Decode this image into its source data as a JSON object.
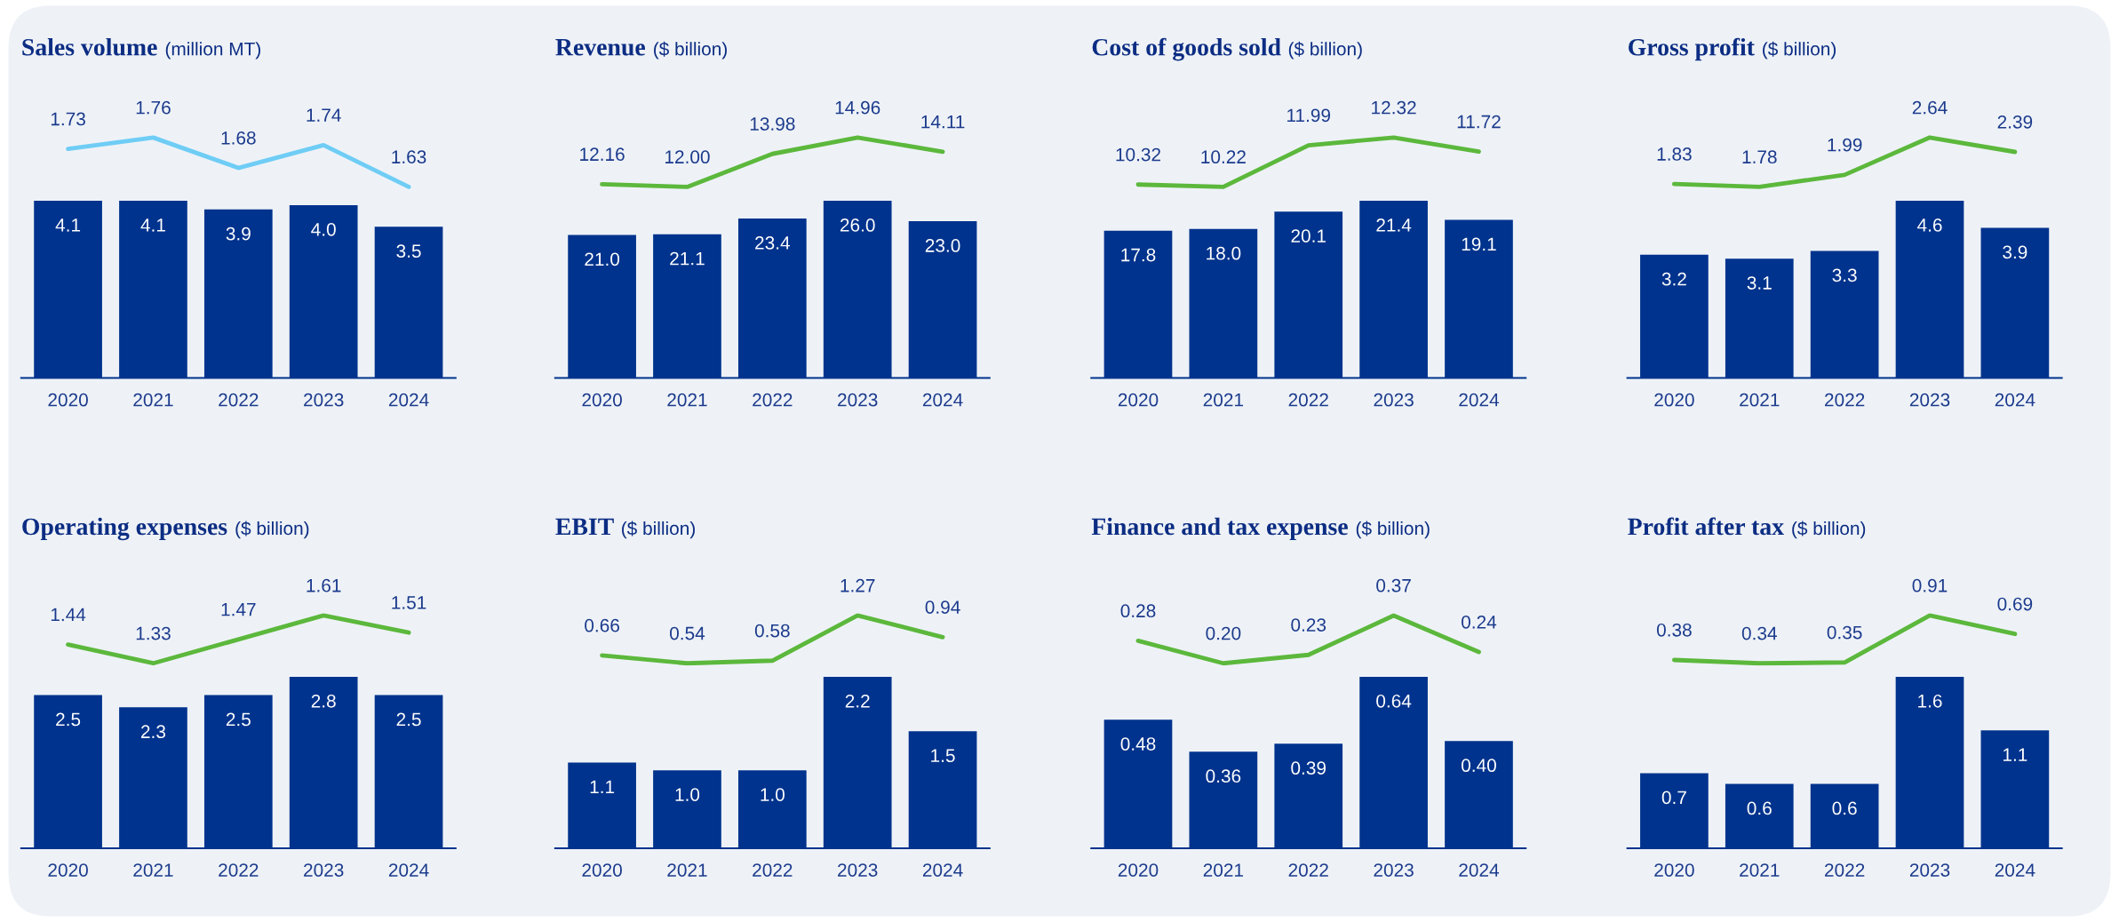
{
  "chart_data": [
    {
      "type": "line",
      "title": "Sales volume",
      "subtitle": "(million MT)",
      "categories": [
        null,
        null,
        null,
        null,
        null
      ],
      "tick_labels": false,
      "grid": false,
      "series": [
        {
          "color": "#6fcdf5",
          "values": [
            1.73,
            1.76,
            1.68,
            1.74,
            1.63
          ],
          "value_labels": [
            "1.73",
            "1.76",
            "1.68",
            "1.74",
            "1.63"
          ],
          "line_style": "solid",
          "marker": "none"
        }
      ]
    },
    {
      "type": "bar",
      "categories": [
        "2020",
        "2021",
        "2022",
        "2023",
        "2024"
      ],
      "tick_labels": "x",
      "grid": false,
      "series": [
        {
          "color": "#00338d",
          "values": [
            4.1,
            4.1,
            3.9,
            4.0,
            3.5
          ],
          "value_labels": [
            "4.1",
            "4.1",
            "3.9",
            "4.0",
            "3.5"
          ]
        }
      ]
    },
    {
      "type": "line",
      "title": "Revenue",
      "subtitle": "($ billion)",
      "categories": [
        null,
        null,
        null,
        null,
        null
      ],
      "tick_labels": false,
      "grid": false,
      "series": [
        {
          "color": "#5cb83c",
          "values": [
            12.16,
            12.0,
            13.98,
            14.96,
            14.11
          ],
          "value_labels": [
            "12.16",
            "12.00",
            "13.98",
            "14.96",
            "14.11"
          ],
          "line_style": "solid",
          "marker": "none"
        }
      ]
    },
    {
      "type": "bar",
      "categories": [
        "2020",
        "2021",
        "2022",
        "2023",
        "2024"
      ],
      "tick_labels": "x",
      "grid": false,
      "series": [
        {
          "color": "#00338d",
          "values": [
            21.0,
            21.1,
            23.4,
            26.0,
            23.0
          ],
          "value_labels": [
            "21.0",
            "21.1",
            "23.4",
            "26.0",
            "23.0"
          ]
        }
      ]
    },
    {
      "type": "line",
      "title": "Cost of goods sold",
      "subtitle": "($ billion)",
      "categories": [
        null,
        null,
        null,
        null,
        null
      ],
      "tick_labels": false,
      "grid": false,
      "series": [
        {
          "color": "#5cb83c",
          "values": [
            10.32,
            10.22,
            11.99,
            12.32,
            11.72
          ],
          "value_labels": [
            "10.32",
            "10.22",
            "11.99",
            "12.32",
            "11.72"
          ],
          "line_style": "solid",
          "marker": "none"
        }
      ]
    },
    {
      "type": "bar",
      "categories": [
        "2020",
        "2021",
        "2022",
        "2023",
        "2024"
      ],
      "tick_labels": "x",
      "grid": false,
      "series": [
        {
          "color": "#00338d",
          "values": [
            17.8,
            18.0,
            20.1,
            21.4,
            19.1
          ],
          "value_labels": [
            "17.8",
            "18.0",
            "20.1",
            "21.4",
            "19.1"
          ]
        }
      ]
    },
    {
      "type": "line",
      "title": "Gross profit",
      "subtitle": "($ billion)",
      "categories": [
        null,
        null,
        null,
        null,
        null
      ],
      "tick_labels": false,
      "grid": false,
      "series": [
        {
          "color": "#5cb83c",
          "values": [
            1.83,
            1.78,
            1.99,
            2.64,
            2.39
          ],
          "value_labels": [
            "1.83",
            "1.78",
            "1.99",
            "2.64",
            "2.39"
          ],
          "line_style": "solid",
          "marker": "none"
        }
      ]
    },
    {
      "type": "bar",
      "categories": [
        "2020",
        "2021",
        "2022",
        "2023",
        "2024"
      ],
      "tick_labels": "x",
      "grid": false,
      "series": [
        {
          "color": "#00338d",
          "values": [
            3.2,
            3.1,
            3.3,
            4.6,
            3.9
          ],
          "value_labels": [
            "3.2",
            "3.1",
            "3.3",
            "4.6",
            "3.9"
          ]
        }
      ]
    },
    {
      "type": "line",
      "title": "Operating expenses",
      "subtitle": "($ billion)",
      "categories": [
        null,
        null,
        null,
        null,
        null
      ],
      "tick_labels": false,
      "grid": false,
      "series": [
        {
          "color": "#5cb83c",
          "values": [
            1.44,
            1.33,
            1.47,
            1.61,
            1.51
          ],
          "value_labels": [
            "1.44",
            "1.33",
            "1.47",
            "1.61",
            "1.51"
          ],
          "line_style": "solid",
          "marker": "none"
        }
      ]
    },
    {
      "type": "bar",
      "categories": [
        "2020",
        "2021",
        "2022",
        "2023",
        "2024"
      ],
      "tick_labels": "x",
      "grid": false,
      "series": [
        {
          "color": "#00338d",
          "values": [
            2.5,
            2.3,
            2.5,
            2.8,
            2.5
          ],
          "value_labels": [
            "2.5",
            "2.3",
            "2.5",
            "2.8",
            "2.5"
          ]
        }
      ]
    },
    {
      "type": "line",
      "title": "EBIT",
      "subtitle": "($ billion)",
      "categories": [
        null,
        null,
        null,
        null,
        null
      ],
      "tick_labels": false,
      "grid": false,
      "series": [
        {
          "color": "#5cb83c",
          "values": [
            0.66,
            0.54,
            0.58,
            1.27,
            0.94
          ],
          "value_labels": [
            "0.66",
            "0.54",
            "0.58",
            "1.27",
            "0.94"
          ],
          "line_style": "solid",
          "marker": "none"
        }
      ]
    },
    {
      "type": "bar",
      "categories": [
        "2020",
        "2021",
        "2022",
        "2023",
        "2024"
      ],
      "tick_labels": "x",
      "grid": false,
      "series": [
        {
          "color": "#00338d",
          "values": [
            1.1,
            1.0,
            1.0,
            2.2,
            1.5
          ],
          "value_labels": [
            "1.1",
            "1.0",
            "1.0",
            "2.2",
            "1.5"
          ]
        }
      ]
    },
    {
      "type": "line",
      "title": "Finance and tax expense",
      "subtitle": "($ billion)",
      "categories": [
        null,
        null,
        null,
        null,
        null
      ],
      "tick_labels": false,
      "grid": false,
      "series": [
        {
          "color": "#5cb83c",
          "values": [
            0.28,
            0.2,
            0.23,
            0.37,
            0.24
          ],
          "value_labels": [
            "0.28",
            "0.20",
            "0.23",
            "0.37",
            "0.24"
          ],
          "line_style": "solid",
          "marker": "none"
        }
      ]
    },
    {
      "type": "bar",
      "categories": [
        "2020",
        "2021",
        "2022",
        "2023",
        "2024"
      ],
      "tick_labels": "x",
      "grid": false,
      "series": [
        {
          "color": "#00338d",
          "values": [
            0.48,
            0.36,
            0.39,
            0.64,
            0.4
          ],
          "value_labels": [
            "0.48",
            "0.36",
            "0.39",
            "0.64",
            "0.40"
          ]
        }
      ]
    },
    {
      "type": "line",
      "title": "Profit after tax",
      "subtitle": "($ billion)",
      "categories": [
        null,
        null,
        null,
        null,
        null
      ],
      "tick_labels": false,
      "grid": false,
      "series": [
        {
          "color": "#5cb83c",
          "values": [
            0.38,
            0.34,
            0.35,
            0.91,
            0.69
          ],
          "value_labels": [
            "0.38",
            "0.34",
            "0.35",
            "0.91",
            "0.69"
          ],
          "line_style": "solid",
          "marker": "none"
        }
      ]
    },
    {
      "type": "bar",
      "categories": [
        "2020",
        "2021",
        "2022",
        "2023",
        "2024"
      ],
      "tick_labels": "x",
      "grid": false,
      "series": [
        {
          "color": "#00338d",
          "values": [
            0.7,
            0.6,
            0.6,
            1.6,
            1.1
          ],
          "value_labels": [
            "0.7",
            "0.6",
            "0.6",
            "1.6",
            "1.1"
          ]
        }
      ]
    }
  ]
}
